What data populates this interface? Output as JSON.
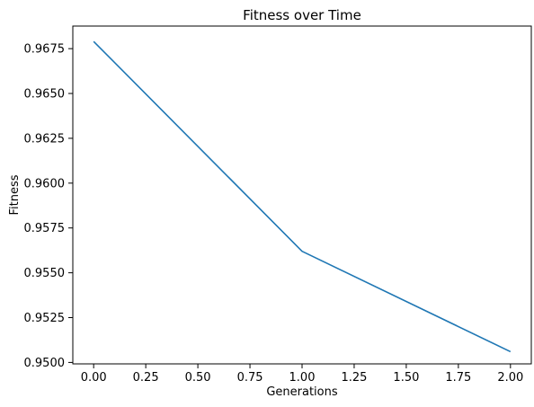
{
  "chart_data": {
    "type": "line",
    "title": "Fitness over Time",
    "xlabel": "Generations",
    "ylabel": "Fitness",
    "xlim": [
      -0.1,
      2.1
    ],
    "ylim": [
      0.94992,
      0.96876
    ],
    "x_ticks": [
      "0.00",
      "0.25",
      "0.50",
      "0.75",
      "1.00",
      "1.25",
      "1.50",
      "1.75",
      "2.00"
    ],
    "y_ticks": [
      "0.9500",
      "0.9525",
      "0.9550",
      "0.9575",
      "0.9600",
      "0.9625",
      "0.9650",
      "0.9675"
    ],
    "grid": false,
    "series": [
      {
        "color": "#1f77b4",
        "x": [
          0,
          1,
          2
        ],
        "y": [
          0.9679,
          0.9562,
          0.9506
        ]
      }
    ]
  }
}
